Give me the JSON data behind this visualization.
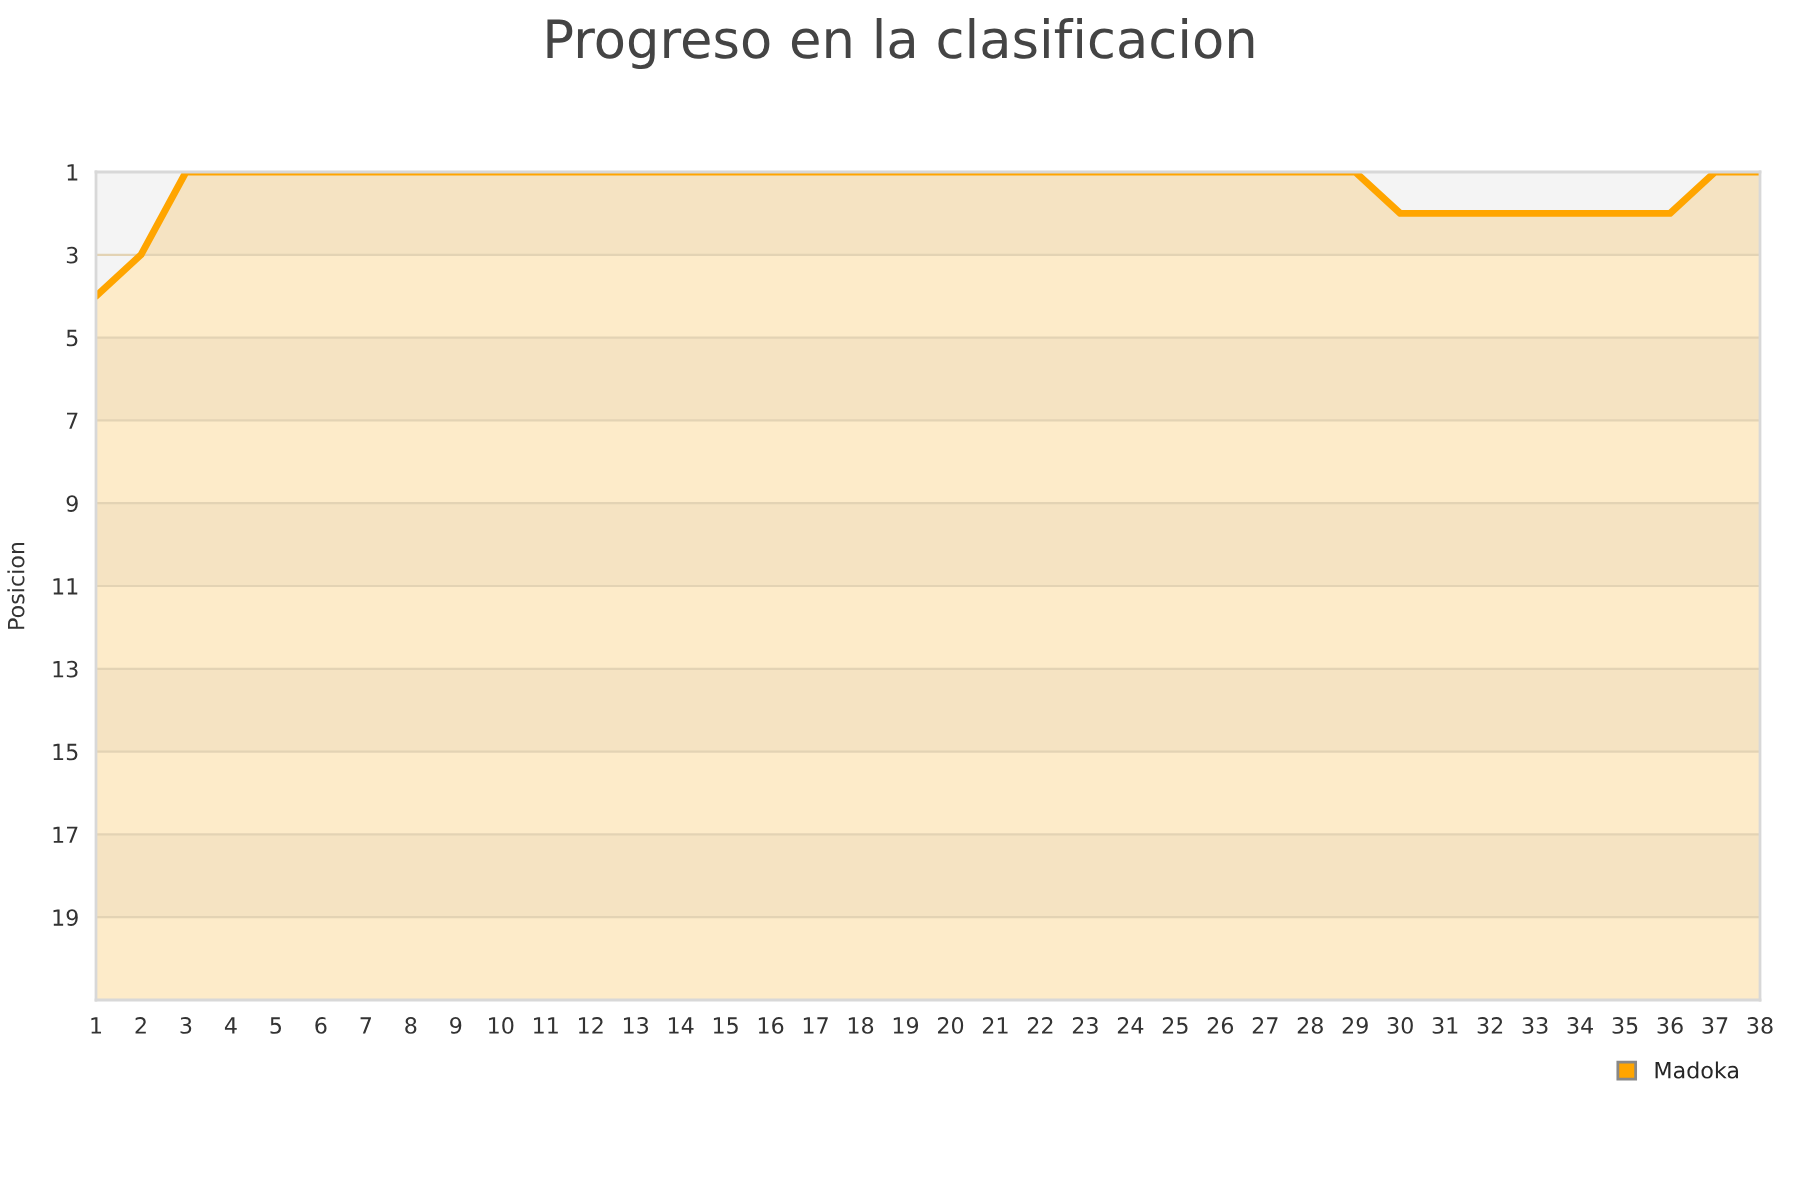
{
  "chart_data": {
    "type": "line",
    "title": "Progreso en la clasificacion",
    "ylabel": "Posicion",
    "x": [
      1,
      2,
      3,
      4,
      5,
      6,
      7,
      8,
      9,
      10,
      11,
      12,
      13,
      14,
      15,
      16,
      17,
      18,
      19,
      20,
      21,
      22,
      23,
      24,
      25,
      26,
      27,
      28,
      29,
      30,
      31,
      32,
      33,
      34,
      35,
      36,
      37,
      38
    ],
    "series": [
      {
        "name": "Madoka",
        "color": "#ffa500",
        "values": [
          4,
          3,
          1,
          1,
          1,
          1,
          1,
          1,
          1,
          1,
          1,
          1,
          1,
          1,
          1,
          1,
          1,
          1,
          1,
          1,
          1,
          1,
          1,
          1,
          1,
          1,
          1,
          1,
          1,
          2,
          2,
          2,
          2,
          2,
          2,
          2,
          1,
          1
        ]
      }
    ],
    "xlim": [
      1,
      38
    ],
    "xticks": [
      1,
      2,
      3,
      4,
      5,
      6,
      7,
      8,
      9,
      10,
      11,
      12,
      13,
      14,
      15,
      16,
      17,
      18,
      19,
      20,
      21,
      22,
      23,
      24,
      25,
      26,
      27,
      28,
      29,
      30,
      31,
      32,
      33,
      34,
      35,
      36,
      37,
      38
    ],
    "ylim": [
      21,
      1
    ],
    "yticks": [
      1,
      3,
      5,
      7,
      9,
      11,
      13,
      15,
      17,
      19
    ],
    "bands": [
      {
        "axis": "y",
        "from": 1,
        "to": 3,
        "color": "#f5e3c2"
      },
      {
        "axis": "y",
        "from": 3,
        "to": 5,
        "color": "#fdebc9"
      },
      {
        "axis": "y",
        "from": 5,
        "to": 7,
        "color": "#f5e3c2"
      },
      {
        "axis": "y",
        "from": 7,
        "to": 9,
        "color": "#fdebc9"
      },
      {
        "axis": "y",
        "from": 9,
        "to": 11,
        "color": "#f5e3c2"
      },
      {
        "axis": "y",
        "from": 11,
        "to": 13,
        "color": "#fdebc9"
      },
      {
        "axis": "y",
        "from": 13,
        "to": 15,
        "color": "#f5e3c2"
      },
      {
        "axis": "y",
        "from": 15,
        "to": 17,
        "color": "#fdebc9"
      },
      {
        "axis": "y",
        "from": 17,
        "to": 19,
        "color": "#f5e3c2"
      },
      {
        "axis": "y",
        "from": 19,
        "to": 21,
        "color": "#fdebc9"
      }
    ],
    "grid": "y",
    "legend": "bottom right",
    "marker": "none",
    "line_style": "solid"
  }
}
